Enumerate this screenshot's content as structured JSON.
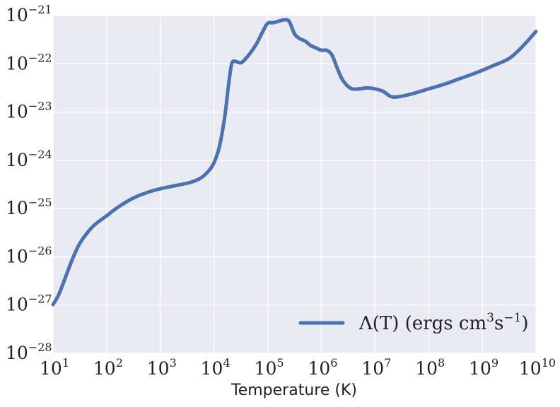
{
  "chart_data": {
    "type": "line",
    "xlabel": "Temperature (K)",
    "ylabel": "",
    "xscale": "log",
    "yscale": "log",
    "xlim": [
      10,
      10000000000
    ],
    "ylim": [
      1e-28,
      1e-21
    ],
    "grid": true,
    "legend_position": "bottom-right",
    "background_color": "#EAEAF2",
    "grid_color": "#FFFFFF",
    "x_tick_labels": [
      {
        "base": "10",
        "exp": "1"
      },
      {
        "base": "10",
        "exp": "2"
      },
      {
        "base": "10",
        "exp": "3"
      },
      {
        "base": "10",
        "exp": "4"
      },
      {
        "base": "10",
        "exp": "5"
      },
      {
        "base": "10",
        "exp": "6"
      },
      {
        "base": "10",
        "exp": "7"
      },
      {
        "base": "10",
        "exp": "8"
      },
      {
        "base": "10",
        "exp": "9"
      },
      {
        "base": "10",
        "exp": "10"
      }
    ],
    "y_tick_labels": [
      {
        "base": "10",
        "exp": "−21"
      },
      {
        "base": "10",
        "exp": "−22"
      },
      {
        "base": "10",
        "exp": "−23"
      },
      {
        "base": "10",
        "exp": "−24"
      },
      {
        "base": "10",
        "exp": "−25"
      },
      {
        "base": "10",
        "exp": "−26"
      },
      {
        "base": "10",
        "exp": "−27"
      },
      {
        "base": "10",
        "exp": "−28"
      }
    ],
    "series": [
      {
        "name": "Λ(T) (ergs cm³s⁻¹)",
        "legend_parts": {
          "main": "Λ(T) (ergs cm",
          "sup1": "3",
          "mid": "s",
          "sup2": "−1",
          "end": ")"
        },
        "color": "#4C72B0",
        "log10_x": [
          1.0,
          1.1,
          1.2,
          1.35,
          1.5,
          1.7,
          1.85,
          2.0,
          2.2,
          2.5,
          2.8,
          3.0,
          3.3,
          3.55,
          3.75,
          3.9,
          4.0,
          4.1,
          4.2,
          4.27,
          4.33,
          4.4,
          4.5,
          4.6,
          4.7,
          4.8,
          4.9,
          5.0,
          5.1,
          5.2,
          5.3,
          5.4,
          5.5,
          5.6,
          5.7,
          5.8,
          5.9,
          6.0,
          6.1,
          6.2,
          6.3,
          6.4,
          6.55,
          6.7,
          6.85,
          7.0,
          7.15,
          7.3,
          7.45,
          7.7,
          8.0,
          8.3,
          8.6,
          8.9,
          9.2,
          9.5,
          9.75,
          10.0
        ],
        "log10_y": [
          -26.99,
          -26.8,
          -26.52,
          -26.08,
          -25.72,
          -25.42,
          -25.27,
          -25.15,
          -24.98,
          -24.78,
          -24.65,
          -24.59,
          -24.52,
          -24.46,
          -24.37,
          -24.22,
          -24.05,
          -23.72,
          -23.1,
          -22.45,
          -22.0,
          -21.95,
          -21.98,
          -21.88,
          -21.74,
          -21.57,
          -21.35,
          -21.16,
          -21.15,
          -21.12,
          -21.09,
          -21.12,
          -21.38,
          -21.48,
          -21.53,
          -21.62,
          -21.67,
          -21.72,
          -21.72,
          -21.82,
          -22.1,
          -22.34,
          -22.51,
          -22.52,
          -22.5,
          -22.52,
          -22.57,
          -22.68,
          -22.68,
          -22.62,
          -22.52,
          -22.42,
          -22.3,
          -22.18,
          -22.04,
          -21.89,
          -21.64,
          -21.33
        ]
      }
    ]
  }
}
